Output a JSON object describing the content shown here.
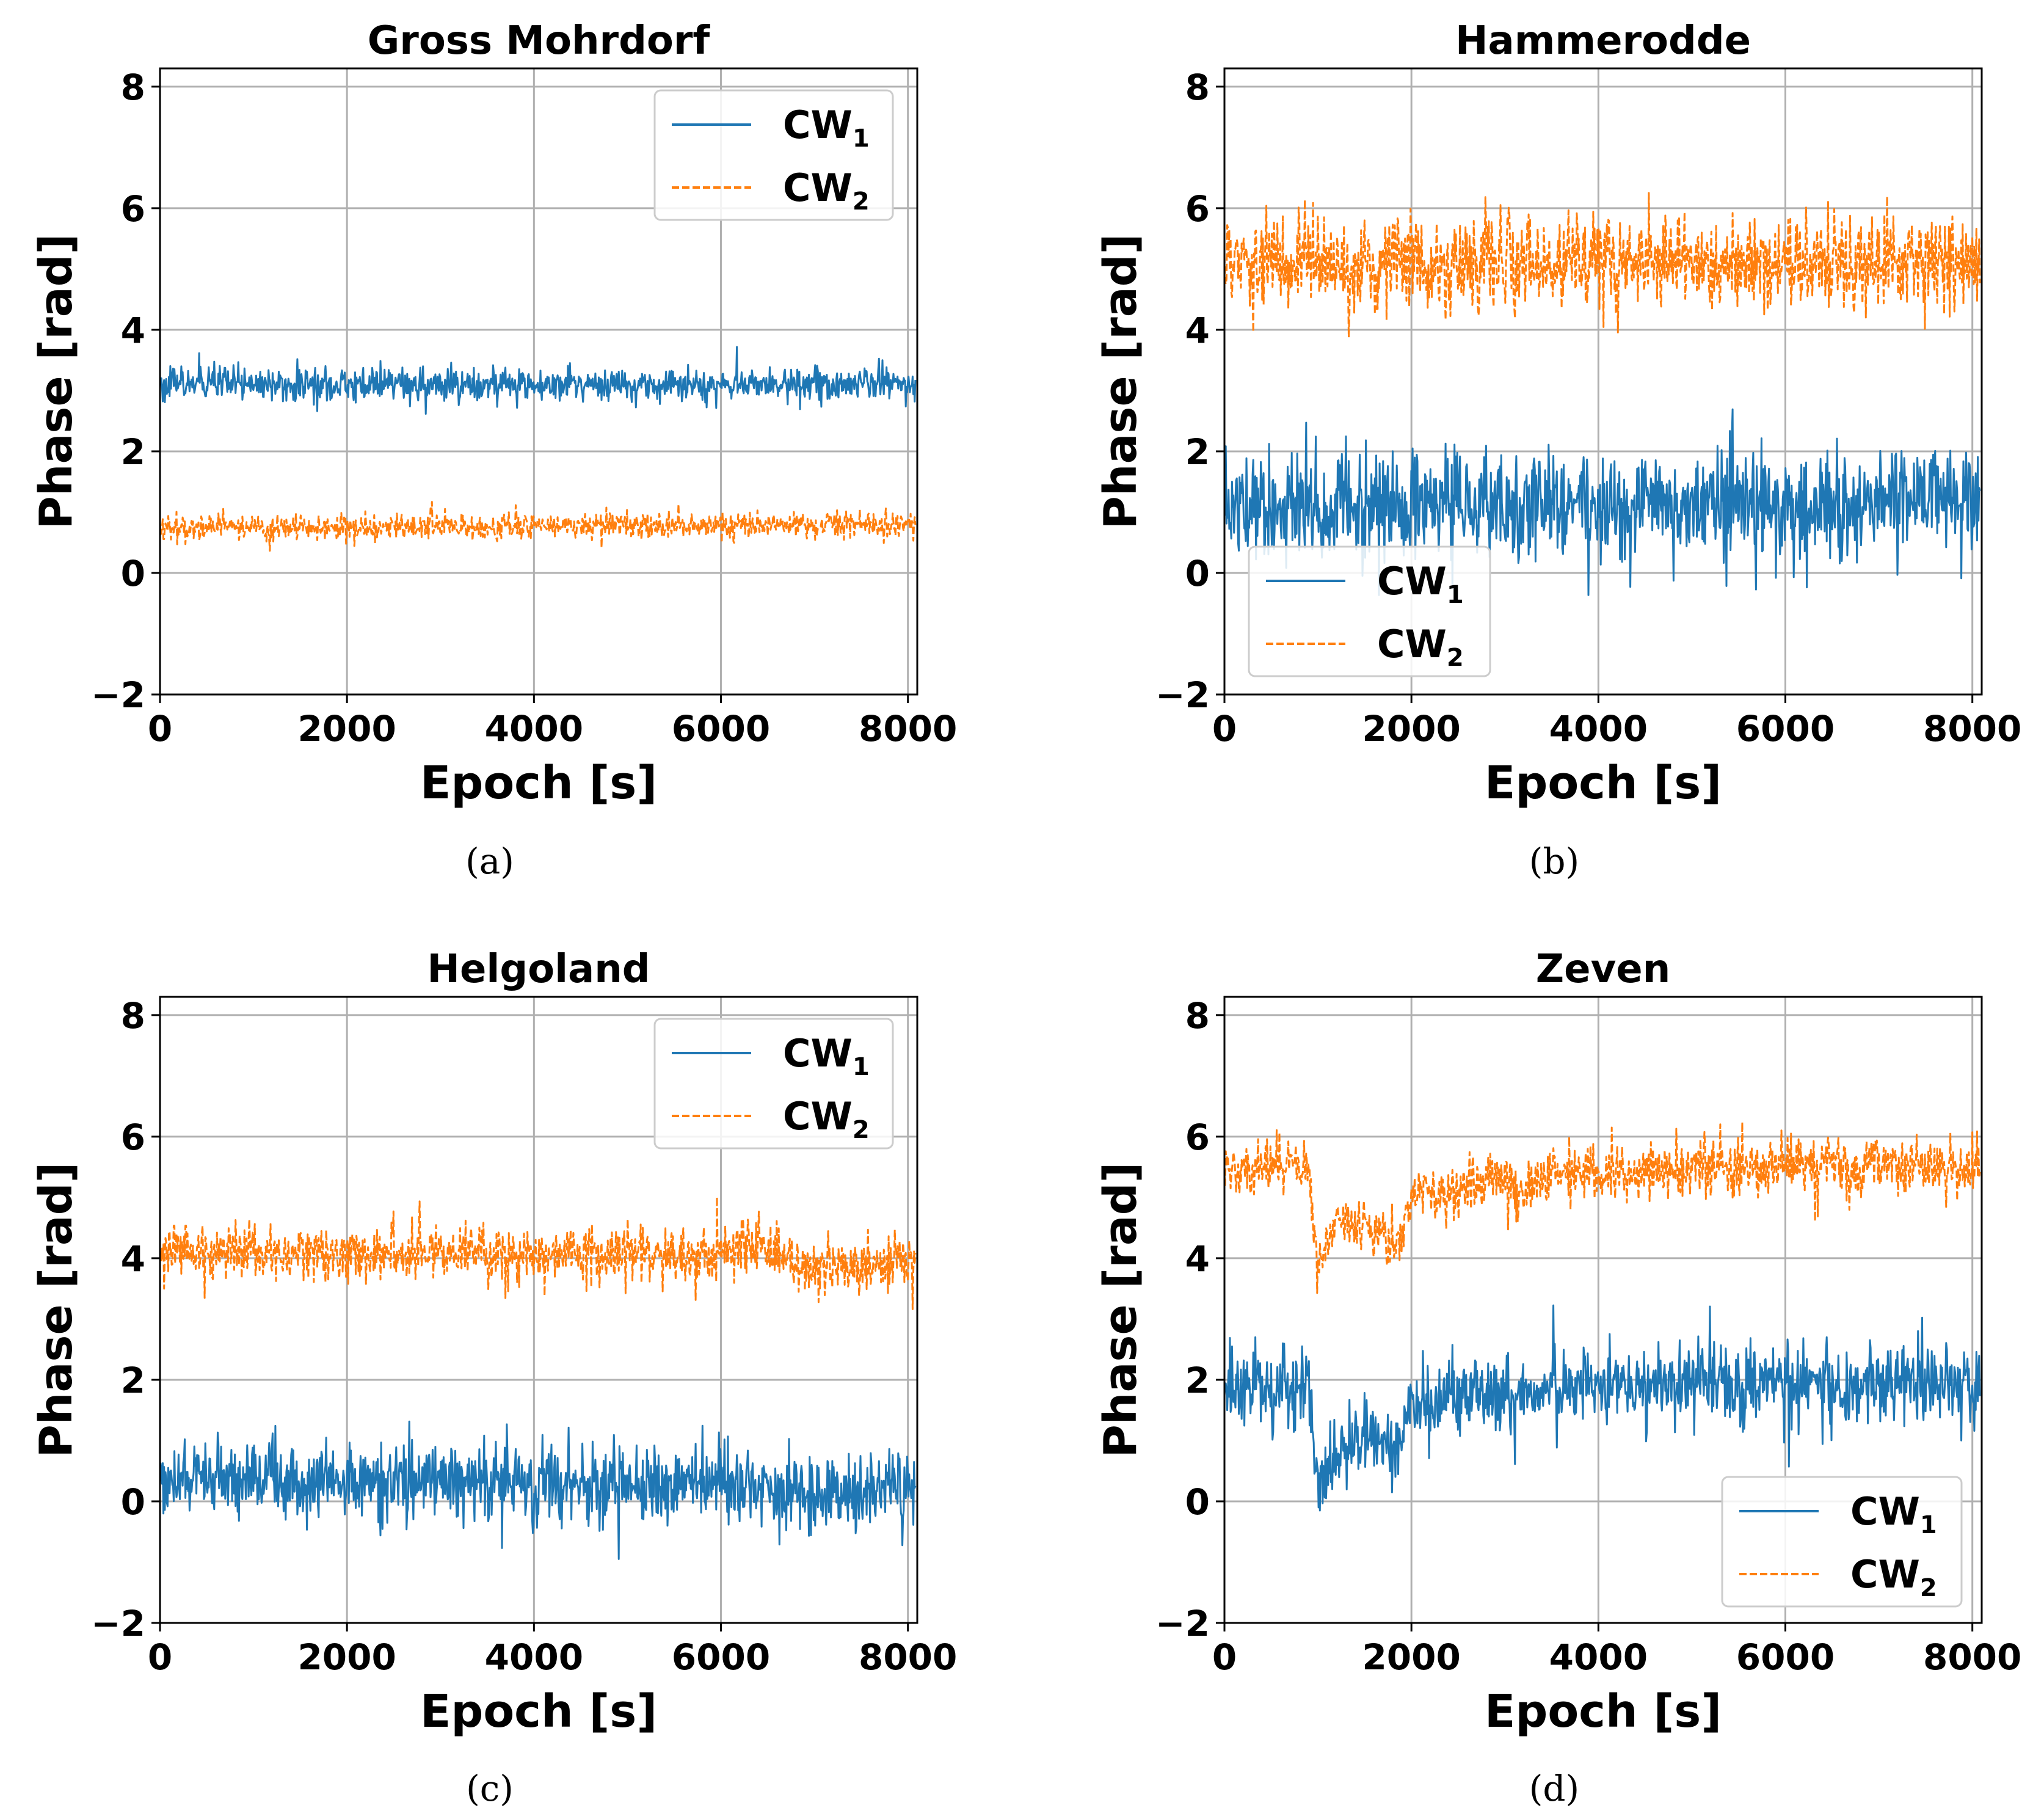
{
  "colors": {
    "cw1": "#1f77b4",
    "cw2": "#ff7f0e",
    "grid": "#b0b0b0"
  },
  "legend": {
    "entries": [
      {
        "base": "CW",
        "sub": "1",
        "style": "solid"
      },
      {
        "base": "CW",
        "sub": "2",
        "style": "dashed"
      }
    ]
  },
  "chart_data": [
    {
      "type": "line",
      "title": "Gross Mohrdorf",
      "caption": "(a)",
      "xlabel": "Epoch [s]",
      "ylabel": "Phase [rad]",
      "xlim": [
        0,
        8100
      ],
      "ylim": [
        -2,
        8.3
      ],
      "xticks": [
        "0",
        "2000",
        "4000",
        "6000",
        "8000"
      ],
      "yticks": [
        "8",
        "6",
        "4",
        "2",
        "0",
        "−2"
      ],
      "grid": true,
      "legend_position": "top-right",
      "series": [
        {
          "name": "CW1",
          "x": [
            0,
            1000,
            2000,
            3000,
            4000,
            5000,
            6000,
            7000,
            8000,
            8080
          ],
          "values": [
            3.1,
            3.1,
            3.1,
            3.1,
            3.1,
            3.1,
            3.1,
            3.1,
            3.15,
            3.1
          ],
          "noise": 0.13
        },
        {
          "name": "CW2",
          "x": [
            0,
            1000,
            2000,
            3000,
            4000,
            5000,
            6000,
            7000,
            8000,
            8080
          ],
          "values": [
            0.75,
            0.75,
            0.75,
            0.75,
            0.78,
            0.78,
            0.78,
            0.8,
            0.8,
            0.8
          ],
          "noise": 0.1
        }
      ]
    },
    {
      "type": "line",
      "title": "Hammerodde",
      "caption": "(b)",
      "xlabel": "Epoch [s]",
      "ylabel": "Phase [rad]",
      "xlim": [
        0,
        8100
      ],
      "ylim": [
        -2,
        8.3
      ],
      "xticks": [
        "0",
        "2000",
        "4000",
        "6000",
        "8000"
      ],
      "yticks": [
        "8",
        "6",
        "4",
        "2",
        "0",
        "−2"
      ],
      "grid": true,
      "legend_position": "bottom-left",
      "series": [
        {
          "name": "CW1",
          "x": [
            0,
            1000,
            2000,
            3000,
            4000,
            5000,
            6000,
            7000,
            8000,
            8080
          ],
          "values": [
            1.1,
            1.1,
            1.1,
            1.1,
            1.1,
            1.1,
            1.1,
            1.2,
            1.2,
            1.1
          ],
          "noise": 0.42
        },
        {
          "name": "CW2",
          "x": [
            0,
            1000,
            2000,
            3000,
            4000,
            5000,
            6000,
            7000,
            8000,
            8080
          ],
          "values": [
            5.1,
            5.1,
            5.1,
            5.1,
            5.1,
            5.1,
            5.1,
            5.1,
            5.1,
            5.1
          ],
          "noise": 0.38
        }
      ]
    },
    {
      "type": "line",
      "title": "Helgoland",
      "caption": "(c)",
      "xlabel": "Epoch [s]",
      "ylabel": "Phase [rad]",
      "xlim": [
        0,
        8100
      ],
      "ylim": [
        -2,
        8.3
      ],
      "xticks": [
        "0",
        "2000",
        "4000",
        "6000",
        "8000"
      ],
      "yticks": [
        "8",
        "6",
        "4",
        "2",
        "0",
        "−2"
      ],
      "grid": true,
      "legend_position": "top-right",
      "series": [
        {
          "name": "CW1",
          "x": [
            0,
            1000,
            2000,
            3000,
            4000,
            5000,
            5500,
            6000,
            6500,
            7000,
            7500,
            8000,
            8080
          ],
          "values": [
            0.35,
            0.35,
            0.35,
            0.35,
            0.3,
            0.3,
            0.25,
            0.35,
            0.25,
            0.05,
            0.1,
            0.15,
            0.1
          ],
          "noise": 0.3
        },
        {
          "name": "CW2",
          "x": [
            0,
            1000,
            2000,
            3000,
            4000,
            5000,
            5500,
            6000,
            6300,
            6600,
            7000,
            7500,
            8000,
            8080
          ],
          "values": [
            4.1,
            4.1,
            4.1,
            4.1,
            4.05,
            4.1,
            4.0,
            4.05,
            4.3,
            4.1,
            3.8,
            3.9,
            4.0,
            3.9
          ],
          "noise": 0.22
        }
      ]
    },
    {
      "type": "line",
      "title": "Zeven",
      "caption": "(d)",
      "xlabel": "Epoch [s]",
      "ylabel": "Phase [rad]",
      "xlim": [
        0,
        8100
      ],
      "ylim": [
        -2,
        8.3
      ],
      "xticks": [
        "0",
        "2000",
        "4000",
        "6000",
        "8000"
      ],
      "yticks": [
        "8",
        "6",
        "4",
        "2",
        "0",
        "−2"
      ],
      "grid": true,
      "legend_position": "bottom-right",
      "series": [
        {
          "name": "CW1",
          "x": [
            0,
            500,
            900,
            1000,
            1200,
            1500,
            1800,
            2000,
            2500,
            3000,
            4000,
            5000,
            6000,
            7000,
            8000,
            8080
          ],
          "values": [
            1.9,
            1.9,
            1.9,
            0.2,
            0.8,
            1.0,
            0.9,
            1.6,
            1.7,
            1.8,
            1.9,
            1.9,
            2.0,
            1.9,
            1.9,
            1.9
          ],
          "noise": 0.32
        },
        {
          "name": "CW2",
          "x": [
            0,
            500,
            900,
            1000,
            1200,
            1500,
            1800,
            2000,
            2500,
            3000,
            3200,
            3500,
            4000,
            5000,
            6000,
            7000,
            8000,
            8080
          ],
          "values": [
            5.5,
            5.5,
            5.5,
            3.9,
            4.6,
            4.6,
            4.2,
            4.9,
            5.1,
            5.4,
            5.0,
            5.4,
            5.4,
            5.5,
            5.5,
            5.5,
            5.5,
            5.4
          ],
          "noise": 0.22
        }
      ]
    }
  ]
}
